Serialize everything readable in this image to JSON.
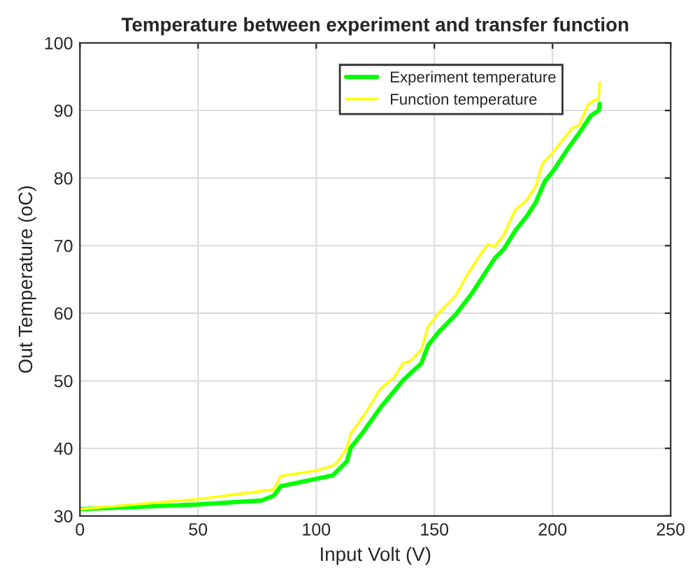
{
  "chart_data": {
    "type": "line",
    "title": "Temperature between experiment and transfer function",
    "xlabel": "Input Volt (V)",
    "ylabel": "Out Temperature (oC)",
    "xlim": [
      0,
      250
    ],
    "xticks": [
      0,
      50,
      100,
      150,
      200,
      250
    ],
    "ylim": [
      30,
      100
    ],
    "yticks": [
      30,
      40,
      50,
      60,
      70,
      80,
      90,
      100
    ],
    "grid": true,
    "legend": "top right",
    "line_style": "solid",
    "marker": "none",
    "series": [
      {
        "name": "Experiment temperature",
        "color": "#00ff00",
        "x": [
          0,
          50,
          77,
          82,
          85,
          100,
          107,
          109,
          113,
          114.6,
          119.4,
          127.1,
          136.8,
          144.5,
          147.4,
          152.3,
          159,
          165.8,
          169.7,
          175.5,
          179.4,
          184.2,
          189,
          192.9,
          196.7,
          200.6,
          206.4,
          212.2,
          216.1,
          219.5,
          220
        ],
        "values": [
          31,
          31.7,
          32.3,
          33,
          34.4,
          35.5,
          36,
          36.7,
          38.1,
          40.1,
          42.2,
          46,
          50.1,
          52.6,
          55.3,
          57.4,
          59.8,
          62.9,
          65,
          68.1,
          69.5,
          72.2,
          74.3,
          76.4,
          79.5,
          81.2,
          84.3,
          87.1,
          89.2,
          90,
          91
        ]
      },
      {
        "name": "Function temperature",
        "color": "#ffff00",
        "x": [
          0,
          50,
          82,
          85,
          100,
          107,
          109,
          113,
          114.6,
          120.4,
          127.1,
          132.9,
          136.8,
          139.7,
          144.5,
          147.4,
          152.3,
          159,
          163.9,
          169.7,
          172.6,
          175.5,
          179.4,
          184.2,
          189,
          192.9,
          195.8,
          199.7,
          203.5,
          208.4,
          211.2,
          215.1,
          218,
          219.5,
          220
        ],
        "values": [
          31,
          32.5,
          33.9,
          35.9,
          36.7,
          37.4,
          38,
          40.1,
          42.2,
          45,
          48.8,
          50.5,
          52.6,
          52.9,
          54.6,
          58.1,
          60.2,
          62.6,
          65.7,
          68.8,
          70.2,
          69.8,
          71.6,
          75.3,
          76.7,
          78.8,
          82.2,
          83.6,
          85.3,
          87.4,
          87.8,
          90.9,
          91.6,
          91.6,
          94.1
        ]
      }
    ]
  }
}
